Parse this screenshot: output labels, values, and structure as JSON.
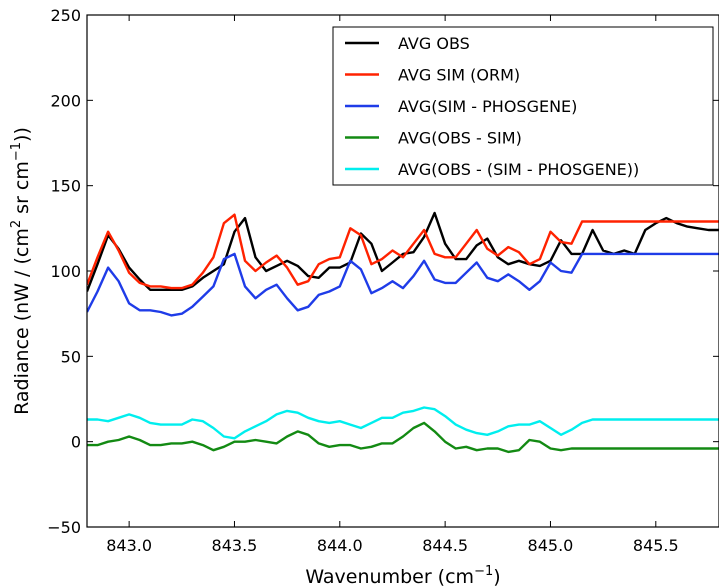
{
  "chart_data": {
    "type": "line",
    "title": "",
    "xlabel_main": "Wavenumber (cm",
    "xlabel_sup": "−1",
    "xlabel_end": ")",
    "ylabel_main": "Radiance (nW / (cm",
    "ylabel_sup1": "2",
    "ylabel_mid": " sr cm",
    "ylabel_sup2": "−1",
    "ylabel_end": "))",
    "xlim": [
      842.8,
      845.8
    ],
    "ylim": [
      -50,
      250
    ],
    "xticks": [
      843.0,
      843.5,
      844.0,
      844.5,
      845.0,
      845.5
    ],
    "xtick_labels": [
      "843.0",
      "843.5",
      "844.0",
      "844.5",
      "845.0",
      "845.5"
    ],
    "yticks": [
      -50,
      0,
      50,
      100,
      150,
      200,
      250
    ],
    "ytick_labels": [
      "−50",
      "0",
      "50",
      "100",
      "150",
      "200",
      "250"
    ],
    "legend_position": "top-right",
    "x": [
      842.8,
      842.85,
      842.9,
      842.95,
      843.0,
      843.05,
      843.1,
      843.15,
      843.2,
      843.25,
      843.3,
      843.35,
      843.4,
      843.45,
      843.5,
      843.55,
      843.6,
      843.65,
      843.7,
      843.75,
      843.8,
      843.85,
      843.9,
      843.95,
      844.0,
      844.05,
      844.1,
      844.15,
      844.2,
      844.25,
      844.3,
      844.35,
      844.4,
      844.45,
      844.5,
      844.55,
      844.6,
      844.65,
      844.7,
      844.75,
      844.8,
      844.85,
      844.9,
      844.95,
      845.0,
      845.05,
      845.1,
      845.15,
      845.2,
      845.25,
      845.3,
      845.35,
      845.4,
      845.45,
      845.5,
      845.55,
      845.6,
      845.65,
      845.7,
      845.75,
      845.8
    ],
    "series": [
      {
        "name": "AVG OBS",
        "color": "#000000",
        "values": [
          88,
          104,
          121,
          113,
          102,
          95,
          89,
          89,
          89,
          89,
          91,
          96,
          100,
          104,
          123,
          131,
          108,
          100,
          103,
          106,
          103,
          97,
          96,
          102,
          102,
          105,
          122,
          116,
          100,
          105,
          110,
          111,
          120,
          134,
          116,
          107,
          107,
          115,
          119,
          108,
          104,
          106,
          104,
          103,
          106,
          118,
          110,
          110,
          124,
          112,
          110,
          112,
          110,
          124,
          128,
          131,
          128,
          126,
          125,
          124,
          124
        ]
      },
      {
        "name": "AVG SIM (ORM)",
        "color": "#ff2200",
        "values": [
          92,
          108,
          123,
          112,
          99,
          93,
          91,
          91,
          90,
          90,
          92,
          99,
          108,
          128,
          133,
          106,
          100,
          105,
          109,
          102,
          92,
          94,
          104,
          107,
          108,
          125,
          121,
          104,
          107,
          112,
          108,
          116,
          124,
          110,
          108,
          108,
          116,
          124,
          113,
          109,
          114,
          111,
          104,
          107,
          123,
          117,
          116,
          129,
          129,
          129,
          129,
          129,
          129,
          129,
          129,
          129,
          129,
          129,
          129,
          129,
          129
        ]
      },
      {
        "name": "AVG(SIM - PHOSGENE)",
        "color": "#1f3ce8",
        "values": [
          76,
          88,
          102,
          94,
          81,
          77,
          77,
          76,
          74,
          75,
          79,
          85,
          91,
          107,
          110,
          91,
          84,
          89,
          92,
          84,
          77,
          79,
          86,
          88,
          91,
          106,
          101,
          87,
          90,
          94,
          90,
          97,
          106,
          95,
          93,
          93,
          99,
          105,
          96,
          94,
          98,
          94,
          89,
          94,
          105,
          100,
          99,
          110,
          110,
          110,
          110,
          110,
          110,
          110,
          110,
          110,
          110,
          110,
          110,
          110,
          110
        ]
      },
      {
        "name": "AVG(OBS - SIM)",
        "color": "#138a13",
        "values": [
          -2,
          -2,
          0,
          1,
          3,
          1,
          -2,
          -2,
          -1,
          -1,
          0,
          -2,
          -5,
          -3,
          0,
          0,
          1,
          0,
          -1,
          3,
          6,
          4,
          -1,
          -3,
          -2,
          -2,
          -4,
          -3,
          -1,
          -1,
          3,
          8,
          11,
          6,
          0,
          -4,
          -3,
          -5,
          -4,
          -4,
          -6,
          -5,
          1,
          0,
          -4,
          -5,
          -4,
          -4,
          -4,
          -4,
          -4,
          -4,
          -4,
          -4,
          -4,
          -4,
          -4,
          -4,
          -4,
          -4,
          -4
        ]
      },
      {
        "name": "AVG(OBS - (SIM - PHOSGENE))",
        "color": "#00eeee",
        "values": [
          13,
          13,
          12,
          14,
          16,
          14,
          11,
          10,
          10,
          10,
          13,
          12,
          8,
          3,
          2,
          6,
          9,
          12,
          16,
          18,
          17,
          14,
          12,
          11,
          12,
          10,
          8,
          11,
          14,
          14,
          17,
          18,
          20,
          19,
          15,
          10,
          7,
          5,
          4,
          6,
          9,
          10,
          10,
          12,
          8,
          4,
          7,
          11,
          13,
          13,
          13,
          13,
          13,
          13,
          13,
          13,
          13,
          13,
          13,
          13,
          13
        ]
      }
    ]
  }
}
